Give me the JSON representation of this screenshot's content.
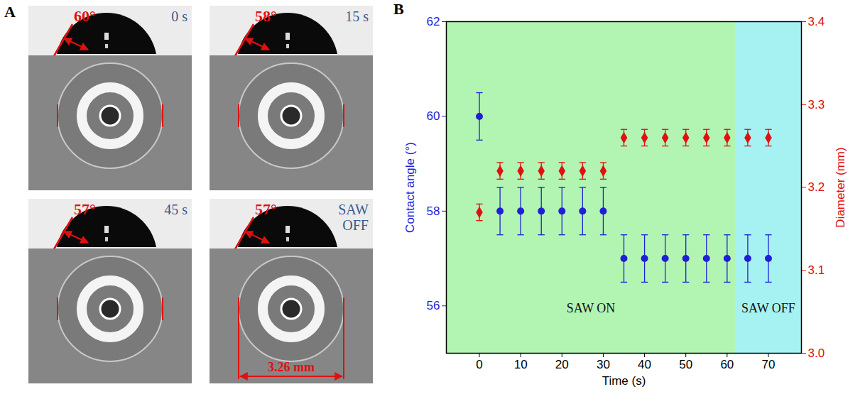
{
  "figure": {
    "panel_a": {
      "letter": "A",
      "images": [
        {
          "angle": "60°",
          "time": "0 s"
        },
        {
          "angle": "58°",
          "time": "15 s"
        },
        {
          "angle": "57°",
          "time": "45 s"
        },
        {
          "angle": "57°",
          "time": "SAW OFF",
          "diameter": "3.26 mm"
        }
      ]
    },
    "panel_b": {
      "letter": "B"
    }
  },
  "chart_data": {
    "type": "scatter",
    "xlabel": "Time (s)",
    "ylabel": "Contact angle (°)",
    "y2label": "Diameter (mm)",
    "x": [
      0,
      5,
      10,
      15,
      20,
      25,
      30,
      35,
      40,
      45,
      50,
      55,
      60,
      65,
      70
    ],
    "xlim": [
      -8,
      78
    ],
    "xticks": [
      0,
      10,
      20,
      30,
      40,
      50,
      60,
      70
    ],
    "ylim": [
      55,
      62
    ],
    "yticks": [
      56,
      58,
      60,
      62
    ],
    "y2lim": [
      3.0,
      3.4
    ],
    "y2ticks": [
      {
        "value": 3.0,
        "label": "3.0"
      },
      3.1,
      3.2,
      3.3,
      3.4
    ],
    "series": [
      {
        "color": "#1f1fd6",
        "marker": "circle",
        "axis": "y",
        "values": [
          60,
          58,
          58,
          58,
          58,
          58,
          58,
          57,
          57,
          57,
          57,
          57,
          57,
          57,
          57
        ],
        "errors": [
          0.5,
          0.5,
          0.5,
          0.5,
          0.5,
          0.5,
          0.5,
          0.5,
          0.5,
          0.5,
          0.5,
          0.5,
          0.5,
          0.5,
          0.5
        ]
      },
      {
        "color": "#e01010",
        "marker": "diamond",
        "axis": "y2",
        "values": [
          3.17,
          3.22,
          3.22,
          3.22,
          3.22,
          3.22,
          3.22,
          3.26,
          3.26,
          3.26,
          3.26,
          3.26,
          3.26,
          3.26,
          3.26
        ],
        "errors": [
          0.01,
          0.01,
          0.01,
          0.01,
          0.01,
          0.01,
          0.01,
          0.01,
          0.01,
          0.01,
          0.01,
          0.01,
          0.01,
          0.01,
          0.01
        ]
      }
    ],
    "regions": [
      {
        "label": "SAW ON",
        "from": -8,
        "to": 62,
        "color": "#b2f5b2"
      },
      {
        "label": "SAW OFF",
        "from": 62,
        "to": 78,
        "color": "#a6f2f2"
      }
    ]
  }
}
